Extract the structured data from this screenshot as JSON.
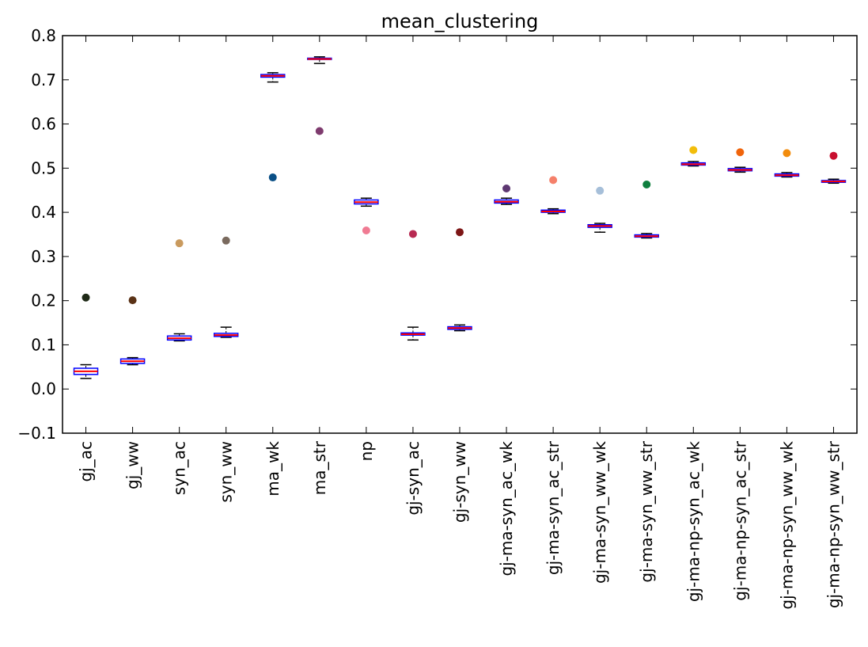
{
  "chart_data": {
    "type": "box",
    "title": "mean_clustering",
    "xlabel": "",
    "ylabel": "",
    "ylim": [
      -0.1,
      0.8
    ],
    "yticks": [
      -0.1,
      0.0,
      0.1,
      0.2,
      0.3,
      0.4,
      0.5,
      0.6,
      0.7,
      0.8
    ],
    "ytick_labels": [
      "−0.1",
      "0.0",
      "0.1",
      "0.2",
      "0.3",
      "0.4",
      "0.5",
      "0.6",
      "0.7",
      "0.8"
    ],
    "grid": false,
    "categories": [
      "gj_ac",
      "gj_ww",
      "syn_ac",
      "syn_ww",
      "ma_wk",
      "ma_str",
      "np",
      "gj-syn_ac",
      "gj-syn_ww",
      "gj-ma-syn_ac_wk",
      "gj-ma-syn_ac_str",
      "gj-ma-syn_ww_wk",
      "gj-ma-syn_ww_str",
      "gj-ma-np-syn_ac_wk",
      "gj-ma-np-syn_ac_str",
      "gj-ma-np-syn_ww_wk",
      "gj-ma-np-syn_ww_str"
    ],
    "boxes": [
      {
        "whislo": 0.024,
        "q1": 0.033,
        "med": 0.04,
        "q3": 0.047,
        "whishi": 0.055
      },
      {
        "whislo": 0.055,
        "q1": 0.058,
        "med": 0.063,
        "q3": 0.068,
        "whishi": 0.071
      },
      {
        "whislo": 0.109,
        "q1": 0.111,
        "med": 0.115,
        "q3": 0.12,
        "whishi": 0.125
      },
      {
        "whislo": 0.117,
        "q1": 0.119,
        "med": 0.122,
        "q3": 0.126,
        "whishi": 0.14
      },
      {
        "whislo": 0.695,
        "q1": 0.706,
        "med": 0.709,
        "q3": 0.712,
        "whishi": 0.716
      },
      {
        "whislo": 0.737,
        "q1": 0.746,
        "med": 0.747,
        "q3": 0.749,
        "whishi": 0.752
      },
      {
        "whislo": 0.414,
        "q1": 0.419,
        "med": 0.423,
        "q3": 0.428,
        "whishi": 0.432
      },
      {
        "whislo": 0.111,
        "q1": 0.122,
        "med": 0.124,
        "q3": 0.127,
        "whishi": 0.14
      },
      {
        "whislo": 0.132,
        "q1": 0.135,
        "med": 0.138,
        "q3": 0.141,
        "whishi": 0.145
      },
      {
        "whislo": 0.418,
        "q1": 0.421,
        "med": 0.424,
        "q3": 0.428,
        "whishi": 0.432
      },
      {
        "whislo": 0.397,
        "q1": 0.4,
        "med": 0.402,
        "q3": 0.405,
        "whishi": 0.408
      },
      {
        "whislo": 0.355,
        "q1": 0.366,
        "med": 0.369,
        "q3": 0.372,
        "whishi": 0.375
      },
      {
        "whislo": 0.342,
        "q1": 0.344,
        "med": 0.346,
        "q3": 0.349,
        "whishi": 0.352
      },
      {
        "whislo": 0.505,
        "q1": 0.507,
        "med": 0.509,
        "q3": 0.512,
        "whishi": 0.515
      },
      {
        "whislo": 0.491,
        "q1": 0.494,
        "med": 0.496,
        "q3": 0.499,
        "whishi": 0.502
      },
      {
        "whislo": 0.48,
        "q1": 0.482,
        "med": 0.484,
        "q3": 0.487,
        "whishi": 0.49
      },
      {
        "whislo": 0.466,
        "q1": 0.468,
        "med": 0.47,
        "q3": 0.472,
        "whishi": 0.475
      }
    ],
    "points": [
      0.207,
      0.201,
      0.33,
      0.336,
      0.479,
      0.584,
      0.359,
      0.351,
      0.355,
      0.454,
      0.473,
      0.449,
      0.463,
      0.541,
      0.536,
      0.534,
      0.528
    ],
    "point_colors": [
      "#1f2a17",
      "#5a3216",
      "#c99a5e",
      "#7a6a5e",
      "#0a4f86",
      "#7e3b6e",
      "#f07b93",
      "#b72a52",
      "#7d1616",
      "#5e3872",
      "#f5806a",
      "#a6bfd9",
      "#0f7f3e",
      "#f2bd0a",
      "#f0640b",
      "#f28c0c",
      "#c80f2f"
    ]
  },
  "colors": {
    "box_edge": "#0000ff",
    "median": "#ff0000",
    "whisker": "#000000",
    "axes": "#000000"
  }
}
